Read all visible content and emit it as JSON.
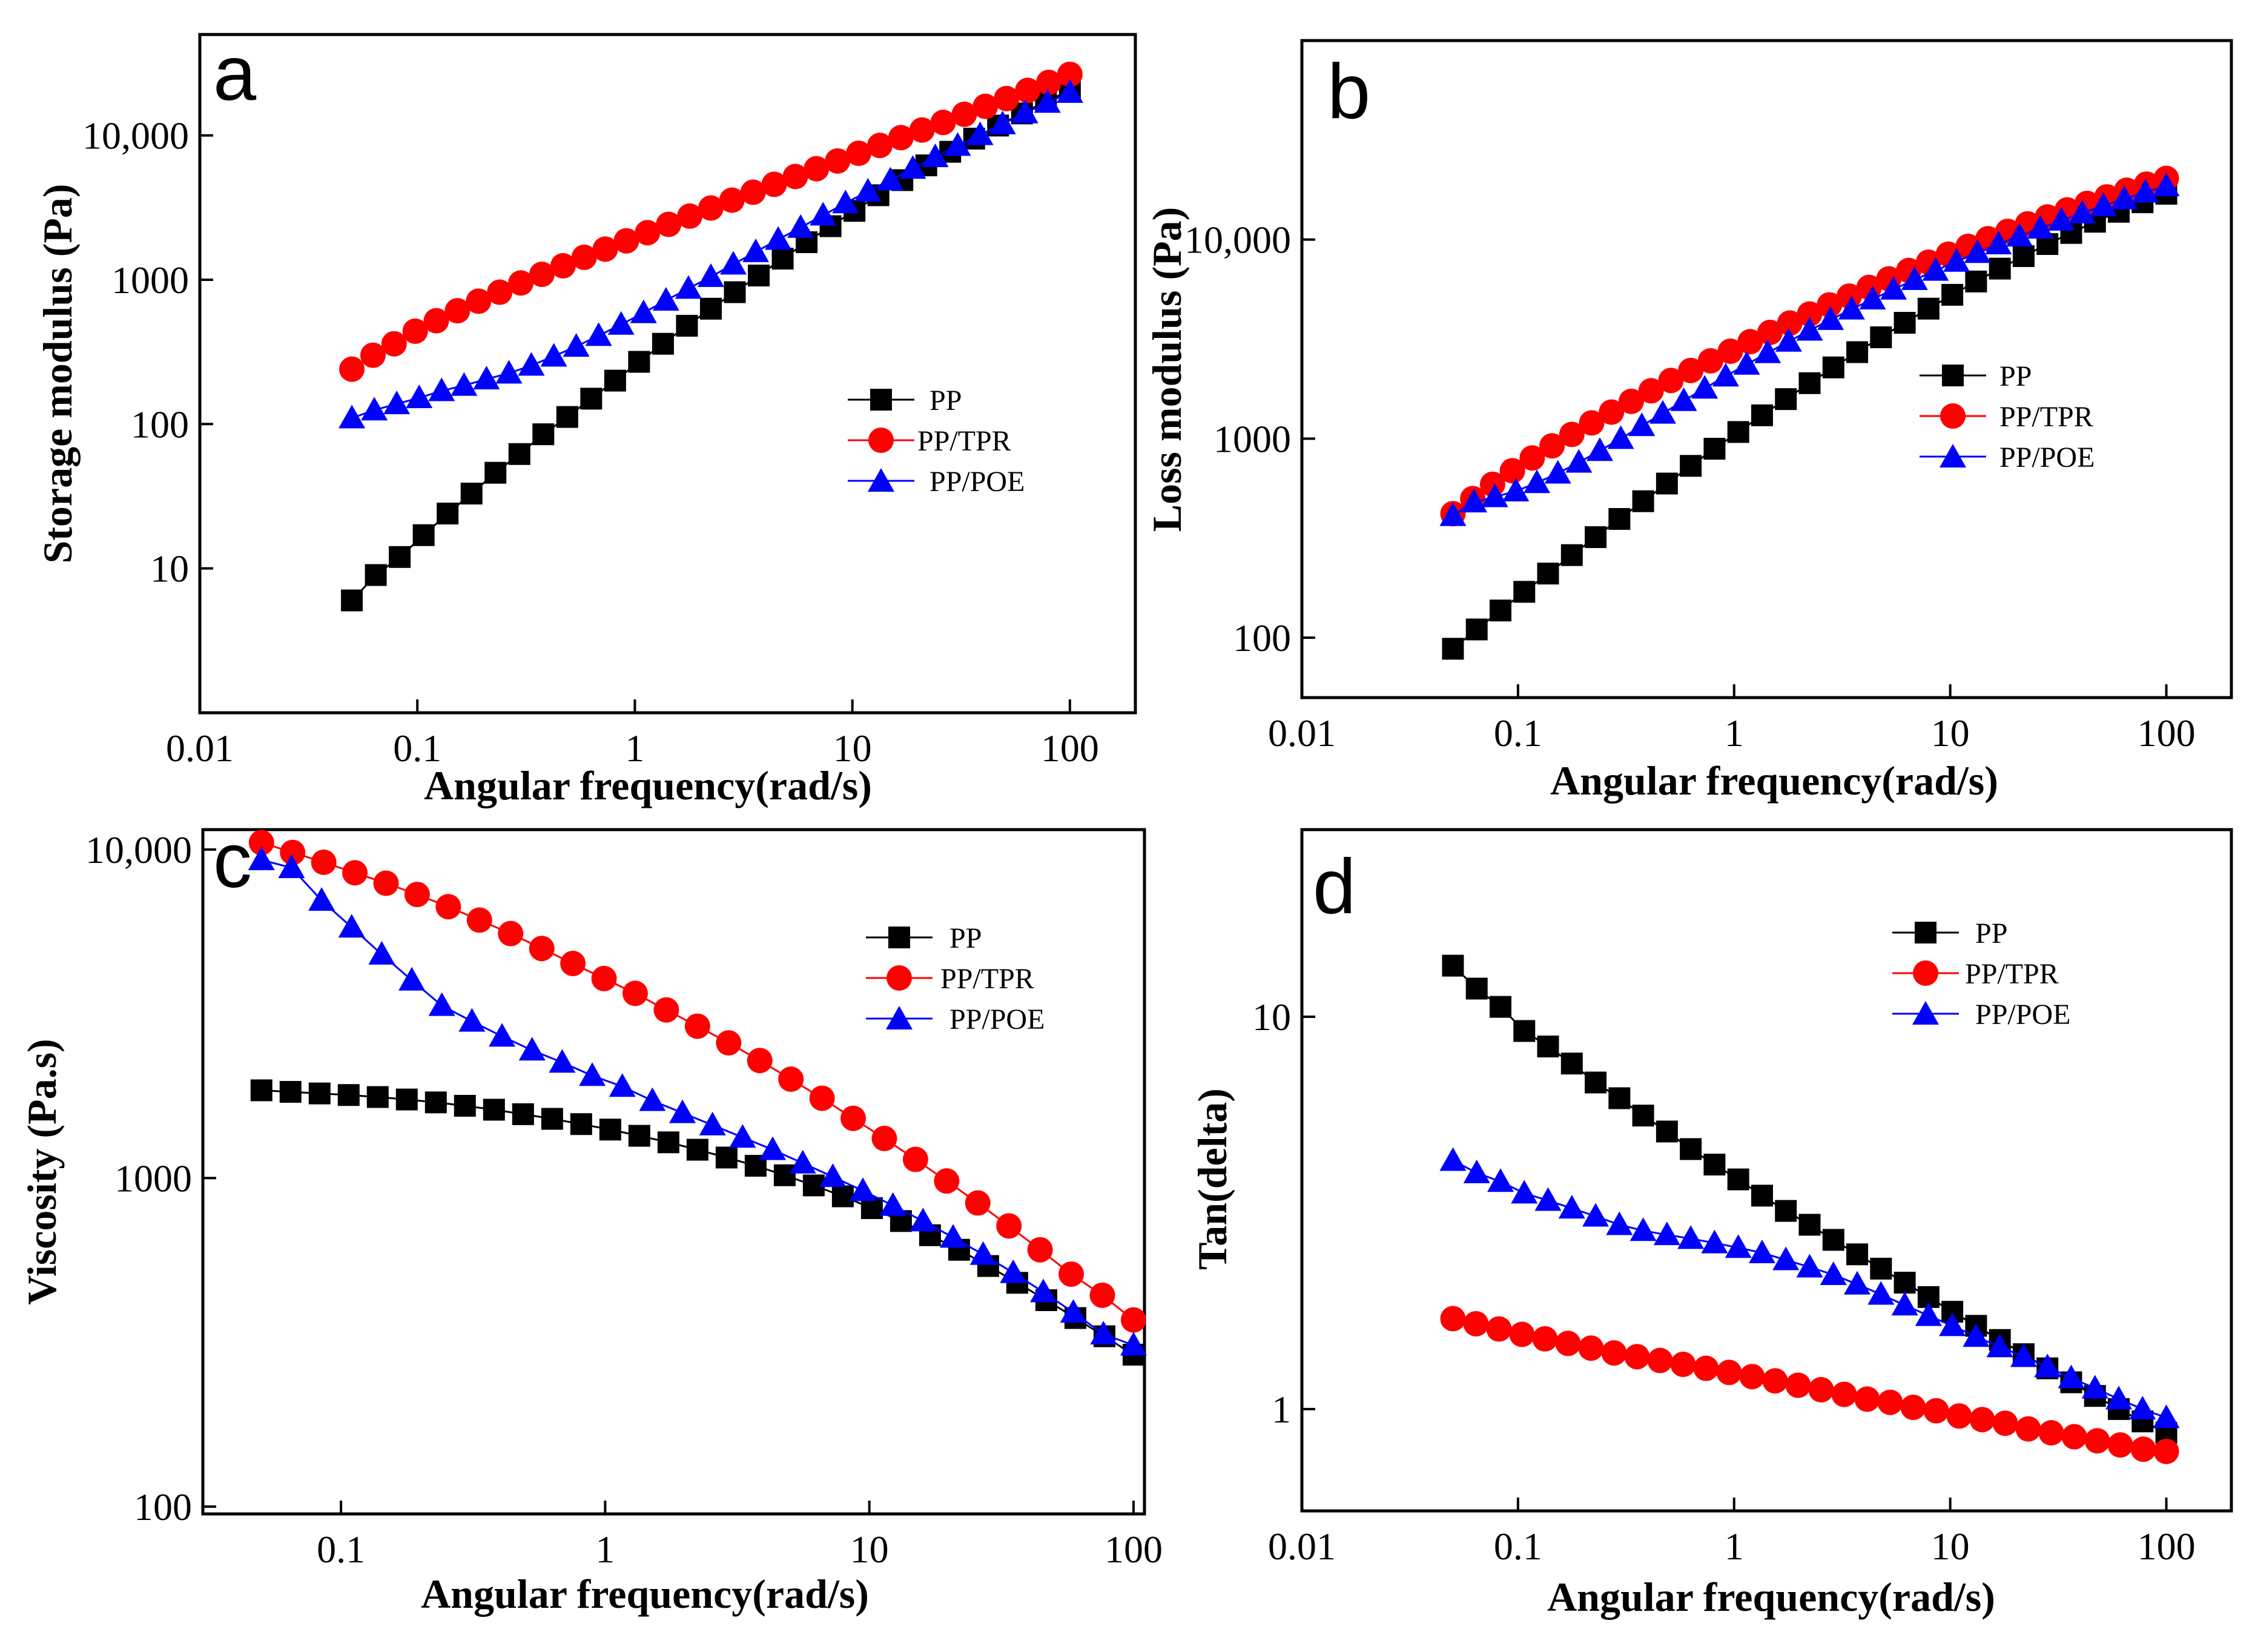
{
  "chart_data": [
    {
      "id": "a",
      "type": "scatter",
      "panel_label": "a",
      "xlabel": "Angular frequency(rad/s)",
      "ylabel": "Storage modulus (Pa)",
      "xscale": "log",
      "yscale": "log",
      "xlim": [
        0.01,
        200
      ],
      "ylim": [
        1,
        50000
      ],
      "xticks": [
        {
          "v": 0.01,
          "label": "0.01"
        },
        {
          "v": 0.1,
          "label": "0.1"
        },
        {
          "v": 1,
          "label": "1"
        },
        {
          "v": 10,
          "label": "10"
        },
        {
          "v": 100,
          "label": "100"
        }
      ],
      "yticks": [
        {
          "v": 10,
          "label": "10"
        },
        {
          "v": 100,
          "label": "100"
        },
        {
          "v": 1000,
          "label": "1000"
        },
        {
          "v": 10000,
          "label": "10,000"
        }
      ],
      "legend_position": "right",
      "series": [
        {
          "name": "PP",
          "marker": "square",
          "color": "#000000",
          "x0": 0.05,
          "x1": 100,
          "y": [
            6,
            9,
            12,
            17,
            24,
            33,
            46,
            62,
            85,
            112,
            150,
            200,
            270,
            360,
            480,
            630,
            820,
            1070,
            1400,
            1820,
            2350,
            3000,
            3850,
            4900,
            6200,
            7700,
            9500,
            11700,
            14200,
            17200,
            20500
          ]
        },
        {
          "name": "PP/TPR",
          "marker": "circle",
          "color": "#ff0000",
          "x0": 0.05,
          "x1": 100,
          "y": [
            240,
            300,
            360,
            440,
            520,
            610,
            710,
            820,
            950,
            1090,
            1250,
            1430,
            1630,
            1860,
            2120,
            2420,
            2760,
            3140,
            3560,
            4040,
            4580,
            5190,
            5880,
            6650,
            7520,
            8520,
            9650,
            10900,
            12300,
            14000,
            15900,
            18000,
            20500,
            23300,
            26500
          ]
        },
        {
          "name": "PP/POE",
          "marker": "triangle",
          "color": "#0000ff",
          "x0": 0.05,
          "x1": 100,
          "y": [
            110,
            125,
            138,
            152,
            170,
            185,
            205,
            225,
            255,
            295,
            345,
            410,
            490,
            590,
            720,
            870,
            1050,
            1280,
            1560,
            1900,
            2300,
            2800,
            3400,
            4100,
            4900,
            5900,
            7100,
            8500,
            10100,
            12000,
            14300,
            16900,
            19800
          ]
        }
      ]
    },
    {
      "id": "b",
      "type": "scatter",
      "panel_label": "b",
      "xlabel": "Angular frequency(rad/s)",
      "ylabel": "Loss modulus (Pa)",
      "xscale": "log",
      "yscale": "log",
      "xlim": [
        0.01,
        200
      ],
      "ylim": [
        50,
        100000
      ],
      "xticks": [
        {
          "v": 0.01,
          "label": "0.01"
        },
        {
          "v": 0.1,
          "label": "0.1"
        },
        {
          "v": 1,
          "label": "1"
        },
        {
          "v": 10,
          "label": "10"
        },
        {
          "v": 100,
          "label": "100"
        }
      ],
      "yticks": [
        {
          "v": 100,
          "label": "100"
        },
        {
          "v": 1000,
          "label": "1000"
        },
        {
          "v": 10000,
          "label": "10,000"
        }
      ],
      "legend_position": "right",
      "series": [
        {
          "name": "PP",
          "marker": "square",
          "color": "#000000",
          "x0": 0.05,
          "x1": 100,
          "y": [
            88,
            110,
            137,
            170,
            210,
            260,
            320,
            395,
            485,
            595,
            730,
            890,
            1080,
            1310,
            1580,
            1900,
            2280,
            2720,
            3230,
            3820,
            4500,
            5280,
            6160,
            7150,
            8260,
            9500,
            10800,
            12300,
            13800,
            15400,
            17000
          ]
        },
        {
          "name": "PP/TPR",
          "marker": "circle",
          "color": "#ff0000",
          "x0": 0.05,
          "x1": 100,
          "y": [
            420,
            500,
            590,
            690,
            800,
            920,
            1050,
            1200,
            1360,
            1540,
            1740,
            1960,
            2200,
            2460,
            2750,
            3070,
            3420,
            3810,
            4230,
            4700,
            5200,
            5750,
            6350,
            7000,
            7700,
            8450,
            9250,
            10100,
            11000,
            12000,
            13000,
            14100,
            15200,
            16400,
            17700,
            19000,
            20300
          ]
        },
        {
          "name": "PP/POE",
          "marker": "triangle",
          "color": "#0000ff",
          "x0": 0.05,
          "x1": 100,
          "y": [
            410,
            480,
            510,
            545,
            600,
            670,
            760,
            870,
            1000,
            1160,
            1340,
            1550,
            1790,
            2060,
            2360,
            2700,
            3080,
            3500,
            3960,
            4470,
            5020,
            5630,
            6290,
            7000,
            7770,
            8600,
            9500,
            10400,
            11400,
            12500,
            13600,
            14800,
            16000,
            17300,
            18600
          ]
        }
      ]
    },
    {
      "id": "c",
      "type": "line",
      "panel_label": "c",
      "xlabel": "Angular frequency(rad/s)",
      "ylabel": "Viscosity (Pa.s)",
      "xscale": "log",
      "yscale": "log",
      "xlim": [
        0.03,
        110
      ],
      "ylim": [
        95,
        11500
      ],
      "xticks": [
        {
          "v": 0.1,
          "label": "0.1"
        },
        {
          "v": 1,
          "label": "1"
        },
        {
          "v": 10,
          "label": "10"
        },
        {
          "v": 100,
          "label": "100"
        }
      ],
      "yticks": [
        {
          "v": 100,
          "label": "100"
        },
        {
          "v": 1000,
          "label": "1000"
        },
        {
          "v": 10000,
          "label": "10,000"
        }
      ],
      "legend_position": "top-right",
      "series": [
        {
          "name": "PP",
          "marker": "square",
          "color": "#000000",
          "x0": 0.05,
          "x1": 100,
          "y": [
            1850,
            1830,
            1810,
            1790,
            1765,
            1735,
            1700,
            1660,
            1615,
            1565,
            1515,
            1460,
            1405,
            1345,
            1285,
            1220,
            1155,
            1090,
            1020,
            950,
            880,
            810,
            740,
            670,
            605,
            540,
            480,
            425,
            375,
            330,
            290
          ]
        },
        {
          "name": "PP/TPR",
          "marker": "circle",
          "color": "#ff0000",
          "x0": 0.05,
          "x1": 100,
          "y": [
            10500,
            9800,
            9150,
            8500,
            7900,
            7300,
            6700,
            6100,
            5550,
            5000,
            4500,
            4050,
            3650,
            3250,
            2900,
            2580,
            2280,
            2000,
            1750,
            1520,
            1320,
            1140,
            980,
            840,
            715,
            605,
            510,
            440,
            370
          ]
        },
        {
          "name": "PP/POE",
          "marker": "triangle",
          "color": "#0000ff",
          "x0": 0.05,
          "x1": 100,
          "y": [
            9300,
            8800,
            7000,
            5800,
            4800,
            4000,
            3350,
            3000,
            2700,
            2450,
            2250,
            2050,
            1900,
            1720,
            1580,
            1450,
            1330,
            1220,
            1110,
            1010,
            915,
            825,
            740,
            660,
            585,
            515,
            450,
            390,
            335,
            310
          ]
        }
      ]
    },
    {
      "id": "d",
      "type": "scatter",
      "panel_label": "d",
      "xlabel": "Angular frequency(rad/s)",
      "ylabel": "Tan(delta)",
      "xscale": "log",
      "yscale": "log",
      "xlim": [
        0.01,
        200
      ],
      "ylim": [
        0.55,
        30
      ],
      "xticks": [
        {
          "v": 0.01,
          "label": "0.01"
        },
        {
          "v": 0.1,
          "label": "0.1"
        },
        {
          "v": 1,
          "label": "1"
        },
        {
          "v": 10,
          "label": "10"
        },
        {
          "v": 100,
          "label": "100"
        }
      ],
      "yticks": [
        {
          "v": 1,
          "label": "1"
        },
        {
          "v": 10,
          "label": "10"
        }
      ],
      "legend_position": "top-right",
      "series": [
        {
          "name": "PP",
          "marker": "square",
          "color": "#000000",
          "x0": 0.05,
          "x1": 100,
          "y": [
            13.5,
            11.8,
            10.6,
            9.2,
            8.4,
            7.6,
            6.8,
            6.2,
            5.6,
            5.1,
            4.6,
            4.2,
            3.85,
            3.5,
            3.2,
            2.95,
            2.7,
            2.48,
            2.28,
            2.1,
            1.93,
            1.77,
            1.63,
            1.5,
            1.38,
            1.27,
            1.17,
            1.08,
            1.0,
            0.93,
            0.87
          ]
        },
        {
          "name": "PP/TPR",
          "marker": "circle",
          "color": "#ff0000",
          "x0": 0.05,
          "x1": 100,
          "y": [
            1.7,
            1.65,
            1.6,
            1.55,
            1.51,
            1.47,
            1.43,
            1.39,
            1.36,
            1.33,
            1.3,
            1.27,
            1.24,
            1.21,
            1.18,
            1.15,
            1.12,
            1.09,
            1.06,
            1.04,
            1.01,
            0.99,
            0.96,
            0.94,
            0.92,
            0.89,
            0.87,
            0.85,
            0.83,
            0.81,
            0.79,
            0.78
          ]
        },
        {
          "name": "PP/POE",
          "marker": "triangle",
          "color": "#0000ff",
          "x0": 0.05,
          "x1": 100,
          "y": [
            4.3,
            4.0,
            3.8,
            3.55,
            3.4,
            3.25,
            3.1,
            2.95,
            2.85,
            2.78,
            2.72,
            2.65,
            2.58,
            2.5,
            2.4,
            2.3,
            2.2,
            2.08,
            1.96,
            1.84,
            1.73,
            1.63,
            1.53,
            1.44,
            1.36,
            1.28,
            1.2,
            1.13,
            1.06,
            1.0,
            0.95
          ]
        }
      ]
    }
  ]
}
